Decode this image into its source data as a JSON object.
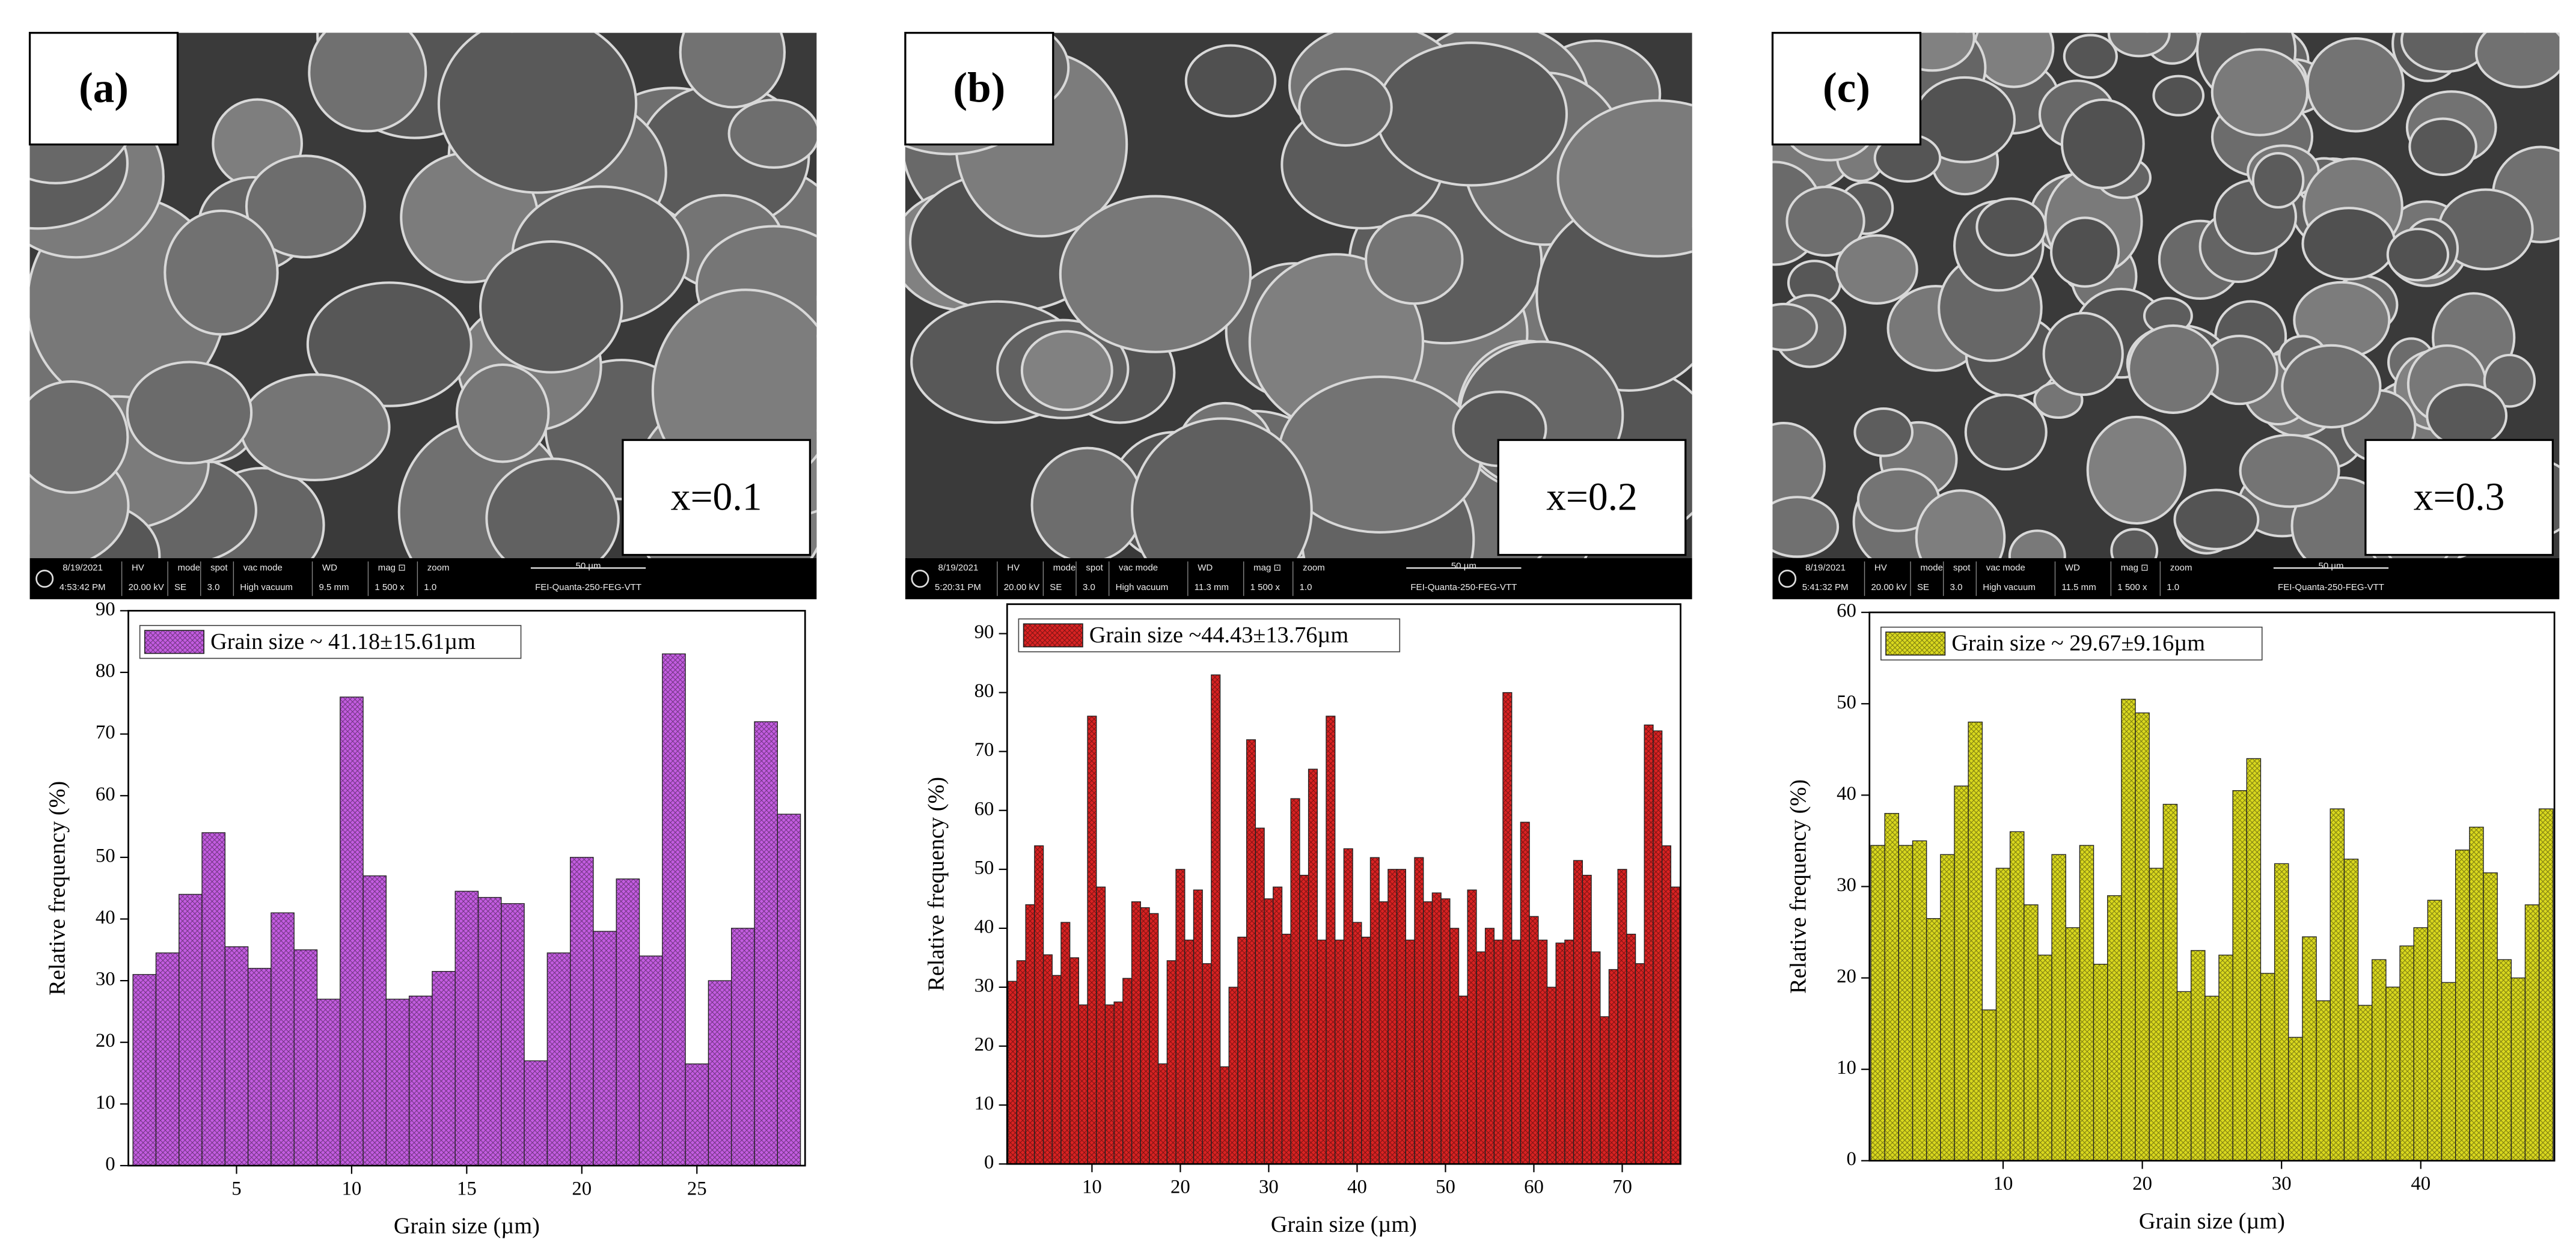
{
  "panels": [
    {
      "label": "(a)",
      "composition": "x=0.1",
      "sem_bar": {
        "date": "8/19/2021",
        "time": "4:53:42 PM",
        "headers": [
          "HV",
          "mode",
          "spot",
          "vac mode",
          "WD",
          "mag ⊡",
          "zoom"
        ],
        "values": [
          "20.00 kV",
          "SE",
          "3.0",
          "High vacuum",
          "9.5 mm",
          "1 500 x",
          "1.0"
        ],
        "scale": "50 µm",
        "instrument": "FEI-Quanta-250-FEG-VTT"
      }
    },
    {
      "label": "(b)",
      "composition": "x=0.2",
      "sem_bar": {
        "date": "8/19/2021",
        "time": "5:20:31 PM",
        "headers": [
          "HV",
          "mode",
          "spot",
          "vac mode",
          "WD",
          "mag ⊡",
          "zoom"
        ],
        "values": [
          "20.00 kV",
          "SE",
          "3.0",
          "High vacuum",
          "11.3 mm",
          "1 500 x",
          "1.0"
        ],
        "scale": "50 µm",
        "instrument": "FEI-Quanta-250-FEG-VTT"
      }
    },
    {
      "label": "(c)",
      "composition": "x=0.3",
      "sem_bar": {
        "date": "8/19/2021",
        "time": "5:41:32 PM",
        "headers": [
          "HV",
          "mode",
          "spot",
          "vac mode",
          "WD",
          "mag ⊡",
          "zoom"
        ],
        "values": [
          "20.00 kV",
          "SE",
          "3.0",
          "High vacuum",
          "11.5 mm",
          "1 500 x",
          "1.0"
        ],
        "scale": "50 µm",
        "instrument": "FEI-Quanta-250-FEG-VTT"
      }
    }
  ],
  "chart_data": [
    {
      "type": "bar",
      "x_label": "Grain size (µm)",
      "y_label": "Relative frequency (%)",
      "series": [
        {
          "name": "Grain size ~ 41.18±15.61µm",
          "color": "#c35ce0",
          "values": [
            31,
            34.5,
            44,
            54,
            35.5,
            32,
            41,
            35,
            27,
            76,
            47,
            27,
            27.5,
            31.5,
            44.5,
            43.5,
            42.5,
            17,
            34.5,
            50,
            38,
            46.5,
            34,
            83,
            16.5,
            30,
            38.5,
            72,
            57
          ]
        }
      ],
      "x": [
        1,
        2,
        3,
        4,
        5,
        6,
        7,
        8,
        9,
        10,
        11,
        12,
        13,
        14,
        15,
        16,
        17,
        18,
        19,
        20,
        21,
        22,
        23,
        24,
        25,
        26,
        27,
        28,
        29
      ],
      "xlim": [
        0.3,
        29.7
      ],
      "xticks": [
        5,
        10,
        15,
        20,
        25
      ],
      "ylim": [
        0,
        90
      ],
      "yticks": [
        0,
        10,
        20,
        30,
        40,
        50,
        60,
        70,
        80,
        90
      ]
    },
    {
      "type": "bar",
      "x_label": "Grain size (µm)",
      "y_label": "Relative frequency (%)",
      "series": [
        {
          "name": "Grain size ~44.43±13.76µm",
          "color": "#d92222",
          "values": [
            31,
            34.5,
            44,
            54,
            35.5,
            32,
            41,
            35,
            27,
            76,
            47,
            27,
            27.5,
            31.5,
            44.5,
            43.5,
            42.5,
            17,
            34.5,
            50,
            38,
            46.5,
            34,
            83,
            16.5,
            30,
            38.5,
            72,
            57,
            45,
            47,
            39,
            62,
            49,
            67,
            38,
            76,
            38,
            53.5,
            41,
            38.5,
            52,
            44.5,
            50,
            50,
            38,
            52,
            44.5,
            46,
            45,
            40,
            28.5,
            46.5,
            36,
            40,
            38,
            80,
            38,
            58,
            42,
            38,
            30,
            37.5,
            38,
            51.5,
            49,
            36,
            25,
            33,
            50,
            39,
            34,
            74.5,
            73.5,
            54,
            47
          ]
        }
      ],
      "x": [
        1,
        2,
        3,
        4,
        5,
        6,
        7,
        8,
        9,
        10,
        11,
        12,
        13,
        14,
        15,
        16,
        17,
        18,
        19,
        20,
        21,
        22,
        23,
        24,
        25,
        26,
        27,
        28,
        29,
        30,
        31,
        32,
        33,
        34,
        35,
        36,
        37,
        38,
        39,
        40,
        41,
        42,
        43,
        44,
        45,
        46,
        47,
        48,
        49,
        50,
        51,
        52,
        53,
        54,
        55,
        56,
        57,
        58,
        59,
        60,
        61,
        62,
        63,
        64,
        65,
        66,
        67,
        68,
        69,
        70,
        71,
        72,
        73,
        74,
        75,
        76
      ],
      "xlim": [
        0.4,
        76.6
      ],
      "xticks": [
        10,
        20,
        30,
        40,
        50,
        60,
        70
      ],
      "ylim": [
        0,
        95
      ],
      "yticks": [
        0,
        10,
        20,
        30,
        40,
        50,
        60,
        70,
        80,
        90
      ]
    },
    {
      "type": "bar",
      "x_label": "Grain size (µm)",
      "y_label": "Relative frequency (%)",
      "series": [
        {
          "name": "Grain size ~ 29.67±9.16µm",
          "color": "#d9d81e",
          "values": [
            34.5,
            38,
            34.5,
            35,
            26.5,
            33.5,
            41,
            48,
            16.5,
            32,
            36,
            28,
            22.5,
            33.5,
            25.5,
            34.5,
            21.5,
            29,
            50.5,
            49,
            32,
            39,
            18.5,
            23,
            18,
            22.5,
            40.5,
            44,
            20.5,
            32.5,
            13.5,
            24.5,
            17.5,
            38.5,
            33,
            17,
            22,
            19,
            23.5,
            25.5,
            28.5,
            19.5,
            34,
            36.5,
            31.5,
            22,
            20,
            28,
            38.5
          ]
        }
      ],
      "x": [
        1,
        2,
        3,
        4,
        5,
        6,
        7,
        8,
        9,
        10,
        11,
        12,
        13,
        14,
        15,
        16,
        17,
        18,
        19,
        20,
        21,
        22,
        23,
        24,
        25,
        26,
        27,
        28,
        29,
        30,
        31,
        32,
        33,
        34,
        35,
        36,
        37,
        38,
        39,
        40,
        41,
        42,
        43,
        44,
        45,
        46,
        47,
        48,
        49
      ],
      "xlim": [
        0.4,
        49.6
      ],
      "xticks": [
        10,
        20,
        30,
        40
      ],
      "ylim": [
        0,
        60
      ],
      "yticks": [
        0,
        10,
        20,
        30,
        40,
        50,
        60
      ]
    }
  ]
}
